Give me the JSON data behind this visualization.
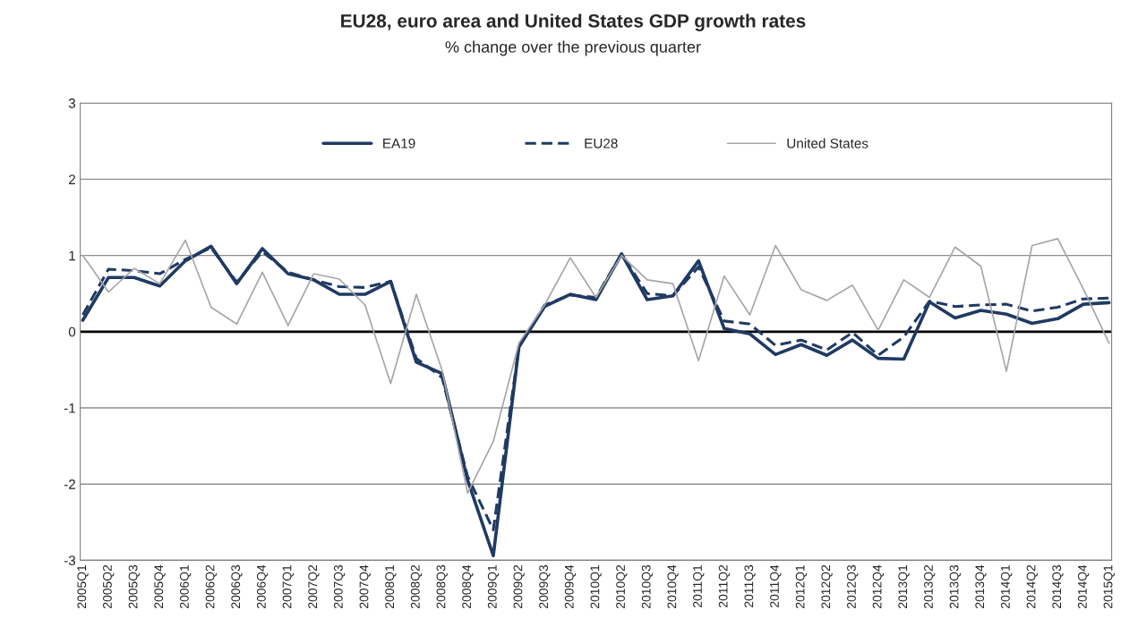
{
  "chart_data": {
    "type": "line",
    "title": "EU28, euro area and United States GDP growth rates",
    "subtitle": "% change over the previous quarter",
    "categories": [
      "2005Q1",
      "2005Q2",
      "2005Q3",
      "2005Q4",
      "2006Q1",
      "2006Q2",
      "2006Q3",
      "2006Q4",
      "2007Q1",
      "2007Q2",
      "2007Q3",
      "2007Q4",
      "2008Q1",
      "2008Q2",
      "2008Q3",
      "2008Q4",
      "2009Q1",
      "2009Q2",
      "2009Q3",
      "2009Q4",
      "2010Q1",
      "2010Q2",
      "2010Q3",
      "2010Q4",
      "2011Q1",
      "2011Q2",
      "2011Q3",
      "2011Q4",
      "2012Q1",
      "2012Q2",
      "2012Q3",
      "2012Q4",
      "2013Q1",
      "2013Q2",
      "2013Q3",
      "2013Q4",
      "2014Q1",
      "2014Q2",
      "2014Q3",
      "2014Q4",
      "2015Q1"
    ],
    "series": [
      {
        "name": "EA19",
        "color": "#1f3a63",
        "line_style": "solid",
        "values": [
          0.15,
          0.71,
          0.71,
          0.6,
          0.93,
          1.12,
          0.63,
          1.09,
          0.76,
          0.68,
          0.49,
          0.49,
          0.66,
          -0.4,
          -0.55,
          -1.95,
          -2.94,
          -0.2,
          0.33,
          0.49,
          0.42,
          1.02,
          0.42,
          0.47,
          0.93,
          0.04,
          -0.03,
          -0.3,
          -0.17,
          -0.31,
          -0.11,
          -0.35,
          -0.36,
          0.39,
          0.18,
          0.28,
          0.23,
          0.11,
          0.17,
          0.36,
          0.38
        ]
      },
      {
        "name": "EU28",
        "color": "#1f3a63",
        "line_style": "dashed",
        "values": [
          0.22,
          0.82,
          0.8,
          0.76,
          0.95,
          1.1,
          0.65,
          1.05,
          0.78,
          0.68,
          0.59,
          0.58,
          0.66,
          -0.35,
          -0.6,
          -1.9,
          -2.6,
          -0.2,
          0.35,
          0.48,
          0.45,
          1.02,
          0.5,
          0.47,
          0.85,
          0.14,
          0.1,
          -0.18,
          -0.11,
          -0.24,
          -0.01,
          -0.31,
          -0.07,
          0.4,
          0.33,
          0.35,
          0.36,
          0.27,
          0.32,
          0.43,
          0.44
        ]
      },
      {
        "name": "United States",
        "color": "#a6a6a6",
        "line_style": "solid",
        "values": [
          1.0,
          0.52,
          0.83,
          0.63,
          1.2,
          0.32,
          0.1,
          0.78,
          0.08,
          0.76,
          0.69,
          0.35,
          -0.68,
          0.49,
          -0.5,
          -2.12,
          -1.44,
          -0.15,
          0.35,
          0.97,
          0.45,
          1.0,
          0.68,
          0.63,
          -0.38,
          0.73,
          0.22,
          1.13,
          0.55,
          0.41,
          0.61,
          0.02,
          0.68,
          0.45,
          1.11,
          0.86,
          -0.52,
          1.13,
          1.22,
          0.56,
          -0.15
        ]
      }
    ],
    "ylim": [
      -3,
      3
    ],
    "yticks": [
      -3,
      -2,
      -1,
      0,
      1,
      2,
      3
    ],
    "grid": "y",
    "legend": "top",
    "ref_lines": [
      {
        "axis": "y",
        "value": 0,
        "color": "#000000"
      }
    ]
  }
}
